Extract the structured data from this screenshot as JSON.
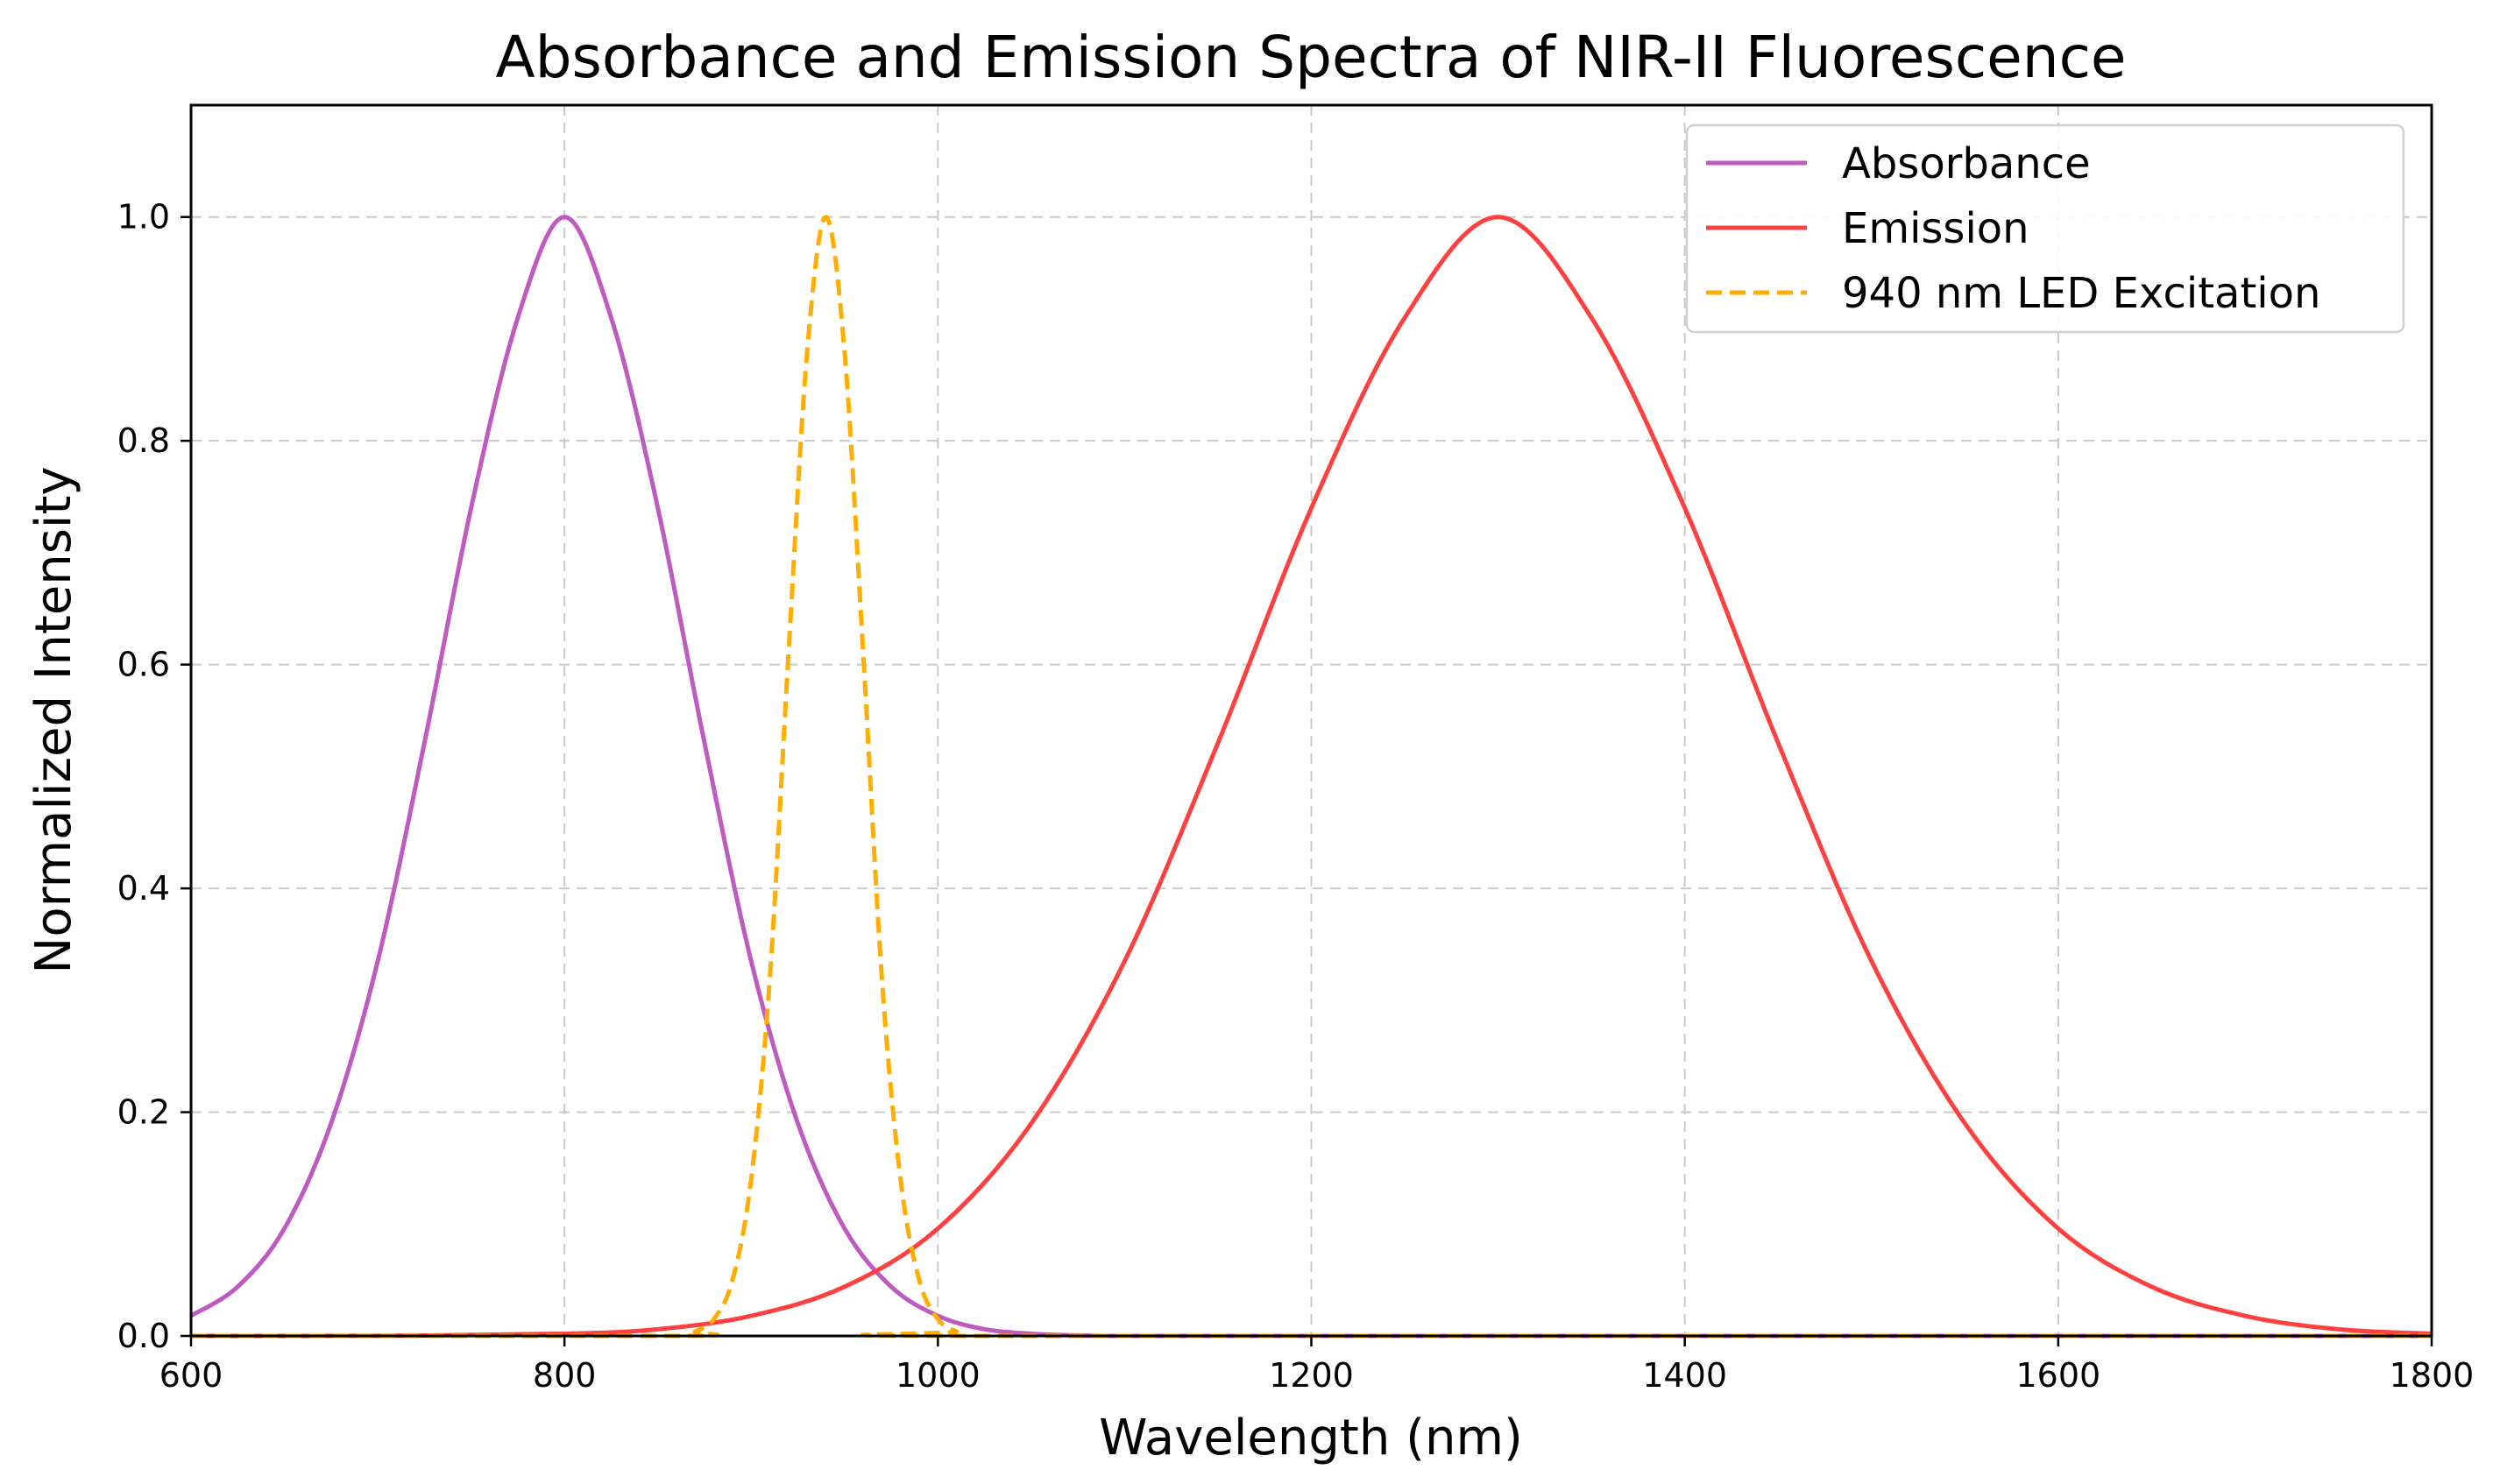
{
  "chart_data": {
    "type": "line",
    "title": "Absorbance and Emission Spectra of NIR-II Fluorescence",
    "xlabel": "Wavelength (nm)",
    "ylabel": "Normalized Intensity",
    "xlim": [
      600,
      1800
    ],
    "ylim": [
      0,
      1.1
    ],
    "xticks": [
      600,
      800,
      1000,
      1200,
      1400,
      1600,
      1800
    ],
    "xtick_labels": [
      "600",
      "800",
      "1000",
      "1200",
      "1400",
      "1600",
      "1800"
    ],
    "yticks": [
      0,
      0.2,
      0.4,
      0.6,
      0.8,
      1.0
    ],
    "ytick_labels": [
      "0.0",
      "0.2",
      "0.4",
      "0.6",
      "0.8",
      "1.0"
    ],
    "grid": true,
    "legend_position": "top-right",
    "series": [
      {
        "name": "Absorbance",
        "color": "#bf5bbf",
        "style": "solid",
        "x": [
          600,
          625,
          650,
          675,
          700,
          725,
          750,
          775,
          800,
          825,
          850,
          875,
          900,
          925,
          950,
          975,
          1000,
          1025,
          1050,
          1075,
          1100,
          1200,
          1400,
          1600,
          1800
        ],
        "y": [
          0.018,
          0.044,
          0.096,
          0.19,
          0.335,
          0.53,
          0.74,
          0.91,
          1.0,
          0.91,
          0.74,
          0.53,
          0.335,
          0.19,
          0.096,
          0.044,
          0.018,
          0.006,
          0.002,
          0.0005,
          0,
          0,
          0,
          0,
          0
        ]
      },
      {
        "name": "Emission",
        "color": "#ff4040",
        "style": "solid",
        "x": [
          600,
          700,
          800,
          850,
          900,
          950,
          1000,
          1050,
          1100,
          1150,
          1200,
          1250,
          1300,
          1350,
          1400,
          1450,
          1500,
          1550,
          1600,
          1650,
          1700,
          1750,
          1800
        ],
        "y": [
          0,
          0.0001,
          0.002,
          0.006,
          0.018,
          0.044,
          0.096,
          0.19,
          0.335,
          0.53,
          0.74,
          0.91,
          1.0,
          0.91,
          0.74,
          0.53,
          0.335,
          0.19,
          0.096,
          0.044,
          0.018,
          0.006,
          0.002
        ]
      },
      {
        "name": "940 nm LED Excitation",
        "color": "#ffae00",
        "style": "dashed",
        "x": [
          600,
          860,
          870,
          880,
          890,
          900,
          910,
          920,
          930,
          940,
          950,
          960,
          970,
          980,
          990,
          1000,
          1010,
          1020,
          1800
        ],
        "y": [
          0,
          0,
          0.004,
          0.015,
          0.05,
          0.14,
          0.32,
          0.61,
          0.88,
          1.0,
          0.88,
          0.61,
          0.32,
          0.14,
          0.05,
          0.015,
          0.004,
          0,
          0
        ]
      }
    ]
  }
}
